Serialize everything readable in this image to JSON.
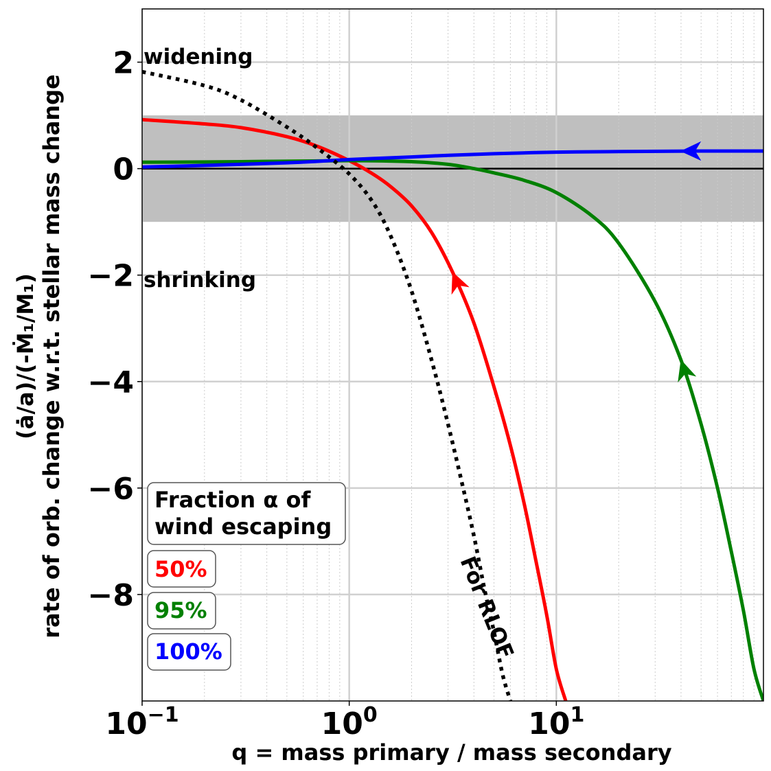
{
  "chart_data": {
    "type": "line",
    "xscale": "log",
    "xlim": [
      0.1,
      100
    ],
    "ylim": [
      -10,
      3
    ],
    "xlabel": "q = mass primary / mass secondary",
    "ylabel_line1": "(ȧ/a)/(-Ṁ₁/M₁)",
    "ylabel_line2": "rate of orb. change w.r.t. stellar mass change",
    "x_ticks": [
      {
        "value": 0.1,
        "base": "10",
        "exp": "−1"
      },
      {
        "value": 1,
        "base": "10",
        "exp": "0"
      },
      {
        "value": 10,
        "base": "10",
        "exp": "1"
      }
    ],
    "y_ticks": [
      {
        "value": 2,
        "label": "2"
      },
      {
        "value": 0,
        "label": "0"
      },
      {
        "value": -2,
        "label": "−2"
      },
      {
        "value": -4,
        "label": "−4"
      },
      {
        "value": -6,
        "label": "−6"
      },
      {
        "value": -8,
        "label": "−8"
      }
    ],
    "shaded_band": {
      "y0": -1,
      "y1": 1,
      "color": "#bfbfbf"
    },
    "zero_line": 0,
    "series": [
      {
        "name": "50%",
        "alpha": 0.5,
        "color": "#ff0000",
        "arrow_x": 3.16,
        "x": [
          0.1,
          0.2,
          0.3,
          0.5,
          0.7,
          1.0,
          1.3,
          1.6,
          2.0,
          2.5,
          3.16,
          4.0,
          5.0,
          6.0,
          7.0,
          8.0,
          9.0,
          10.0,
          11.1
        ],
        "y": [
          0.92,
          0.84,
          0.77,
          0.6,
          0.42,
          0.15,
          -0.1,
          -0.35,
          -0.7,
          -1.2,
          -1.95,
          -2.9,
          -4.1,
          -5.2,
          -6.3,
          -7.4,
          -8.4,
          -9.4,
          -10.0
        ]
      },
      {
        "name": "95%",
        "alpha": 0.95,
        "color": "#008000",
        "arrow_x": 40,
        "x": [
          0.1,
          0.3,
          1.0,
          2.0,
          3.0,
          4.0,
          5.0,
          7.0,
          10.0,
          15.0,
          20.0,
          30.0,
          40.0,
          50.0,
          60.0,
          70.0,
          80.0,
          90.0,
          100.0
        ],
        "y": [
          0.12,
          0.13,
          0.15,
          0.13,
          0.08,
          0.0,
          -0.08,
          -0.22,
          -0.45,
          -0.9,
          -1.4,
          -2.5,
          -3.6,
          -4.8,
          -6.0,
          -7.2,
          -8.3,
          -9.4,
          -10.0
        ]
      },
      {
        "name": "100%",
        "alpha": 1.0,
        "color": "#0000ff",
        "arrow_x": 40,
        "x": [
          0.1,
          0.2,
          0.5,
          1.0,
          2.0,
          3.0,
          5.0,
          10.0,
          20.0,
          50.0,
          100.0
        ],
        "y": [
          0.03,
          0.06,
          0.11,
          0.17,
          0.22,
          0.25,
          0.28,
          0.31,
          0.32,
          0.33,
          0.33
        ]
      },
      {
        "name": "For RLOF",
        "style": "dotted",
        "color": "#000000",
        "x": [
          0.1,
          0.2,
          0.3,
          0.5,
          0.7,
          1.0,
          1.3,
          1.6,
          2.0,
          2.5,
          3.0,
          3.5,
          4.0,
          4.5,
          5.0,
          5.5,
          6.0
        ],
        "y": [
          1.82,
          1.56,
          1.29,
          0.78,
          0.39,
          -0.1,
          -0.63,
          -1.3,
          -2.3,
          -3.6,
          -4.8,
          -5.9,
          -6.9,
          -7.9,
          -8.7,
          -9.5,
          -10.0
        ]
      }
    ],
    "annotations": {
      "widening": "widening",
      "shrinking": "shrinking",
      "rlof": "For RLOF"
    },
    "legend": {
      "title_line1": "Fraction α of",
      "title_line2": "wind escaping",
      "placement": "lower-left",
      "entries": [
        {
          "label": "50%",
          "color": "#ff0000"
        },
        {
          "label": "95%",
          "color": "#008000"
        },
        {
          "label": "100%",
          "color": "#0000ff"
        }
      ]
    }
  }
}
